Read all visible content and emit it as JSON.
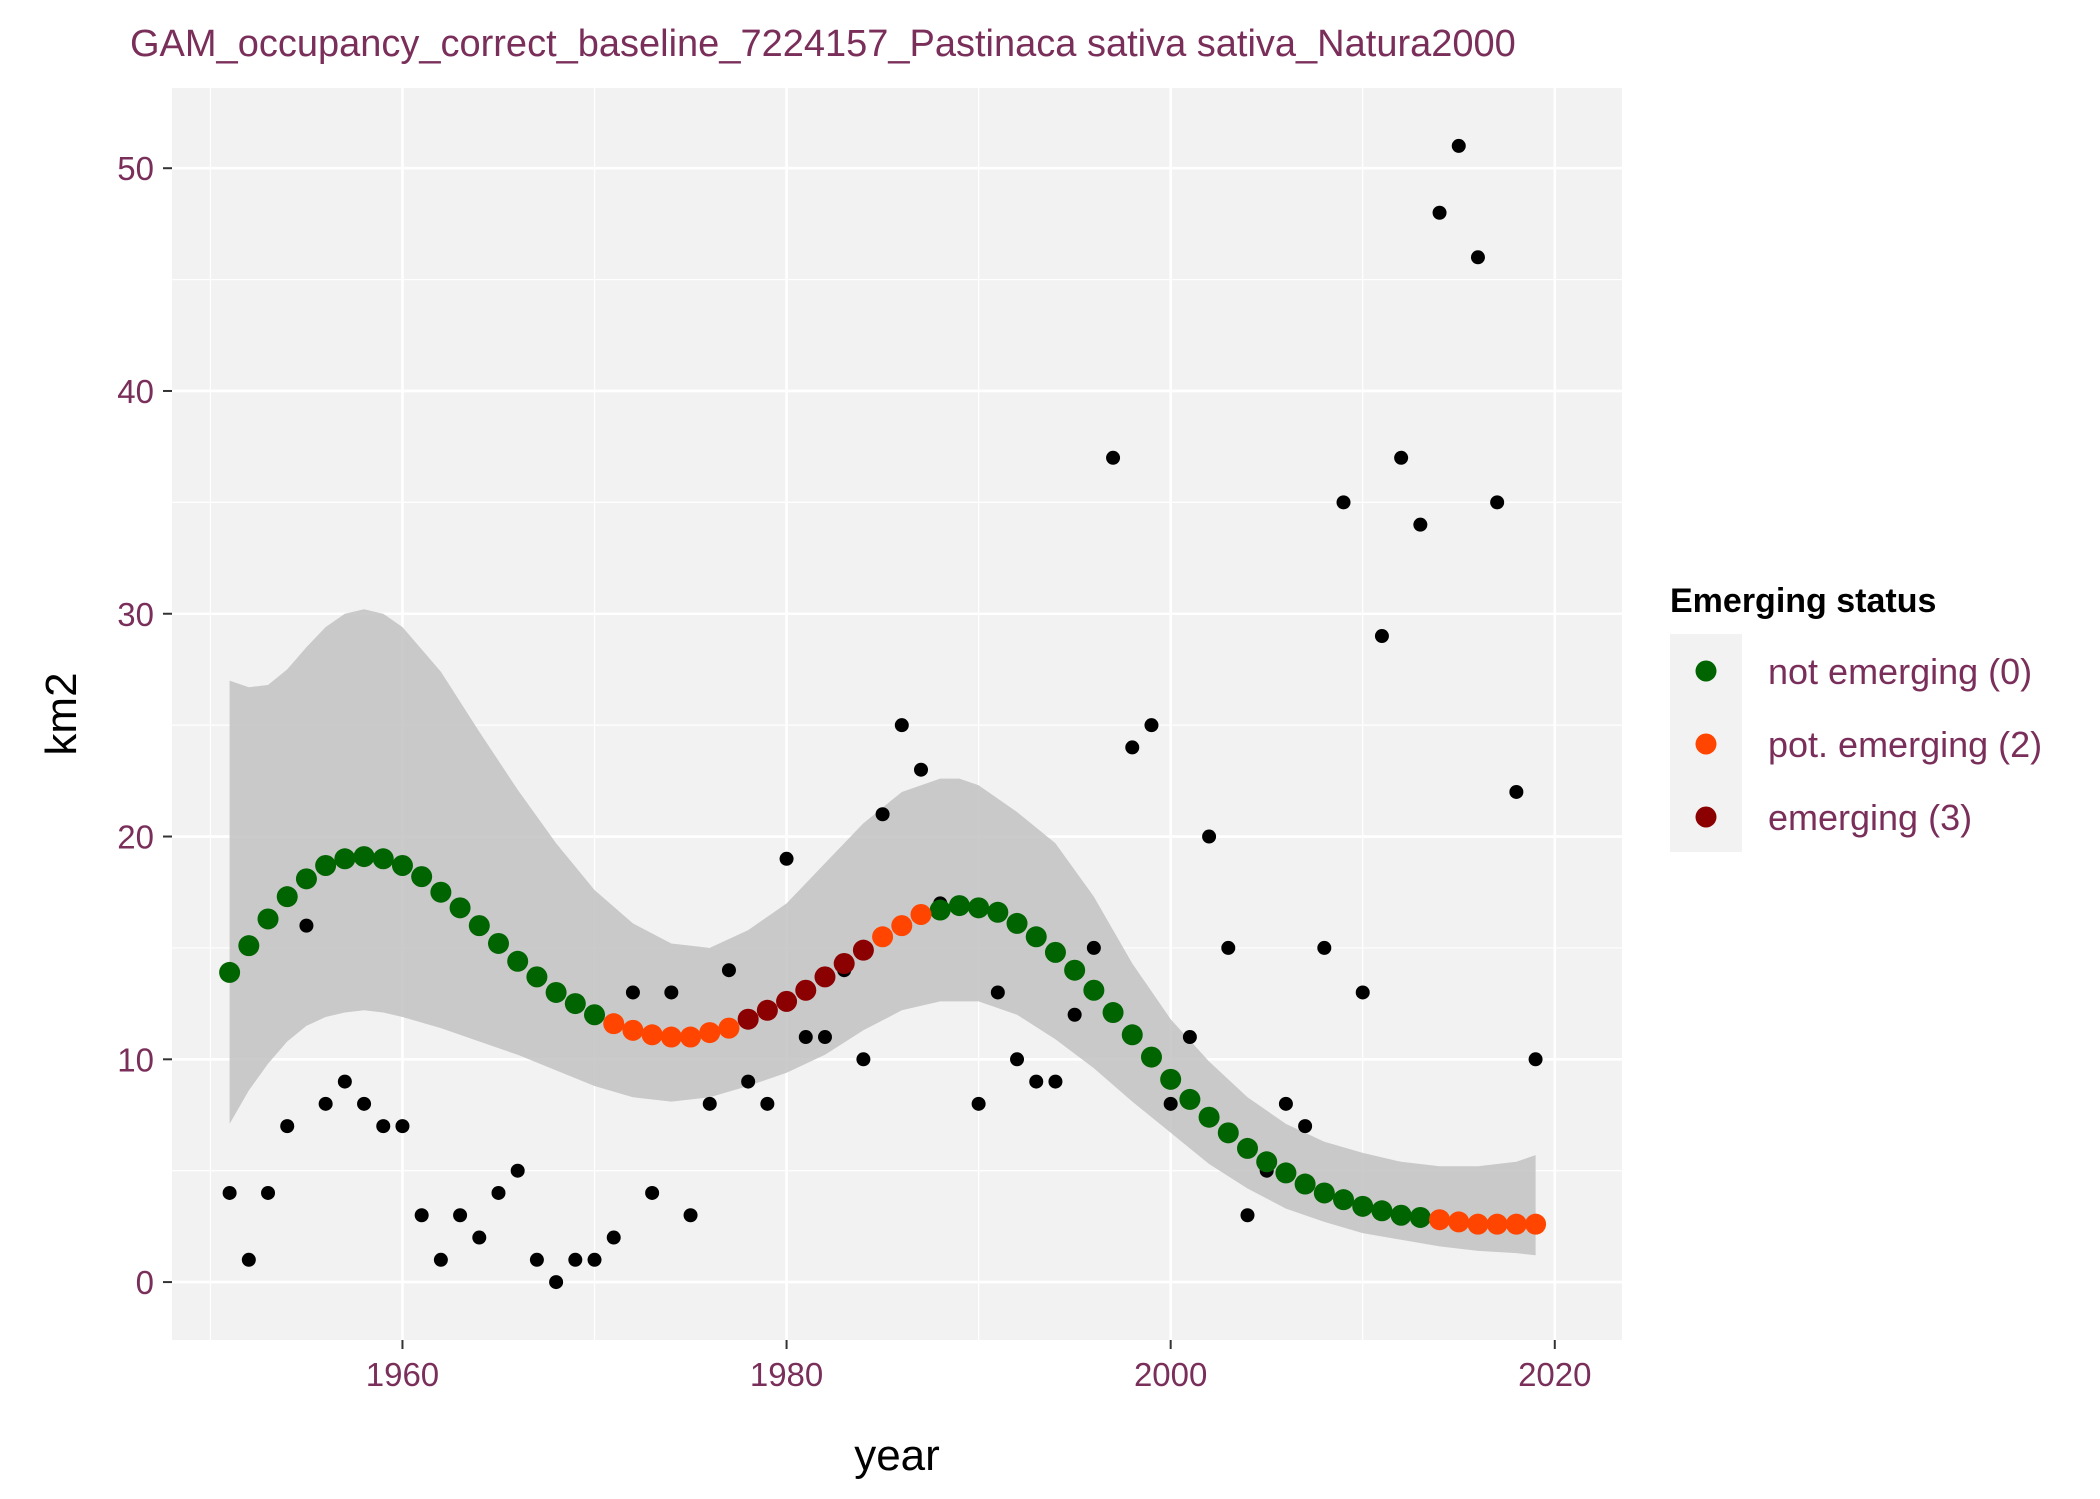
{
  "chart_data": {
    "type": "scatter",
    "title": "GAM_occupancy_correct_baseline_7224157_Pastinaca sativa sativa_Natura2000",
    "xlabel": "year",
    "ylabel": "km2",
    "xlim": [
      1948,
      2023.5
    ],
    "ylim": [
      -2.6,
      53.6
    ],
    "x_ticks": [
      1960,
      1980,
      2000,
      2020
    ],
    "y_ticks": [
      0,
      10,
      20,
      30,
      40,
      50
    ],
    "grid": true,
    "legend": {
      "title": "Emerging status",
      "position": "right",
      "entries": [
        {
          "label": "not emerging (0)",
          "color": "#006400"
        },
        {
          "label": "pot. emerging (2)",
          "color": "#ff4500"
        },
        {
          "label": "emerging (3)",
          "color": "#8b0000"
        }
      ]
    },
    "observed": {
      "color": "#000000",
      "points": [
        [
          1951,
          4
        ],
        [
          1952,
          1
        ],
        [
          1953,
          4
        ],
        [
          1954,
          7
        ],
        [
          1955,
          16
        ],
        [
          1956,
          8
        ],
        [
          1957,
          9
        ],
        [
          1958,
          8
        ],
        [
          1959,
          7
        ],
        [
          1960,
          7
        ],
        [
          1961,
          3
        ],
        [
          1962,
          1
        ],
        [
          1963,
          3
        ],
        [
          1964,
          2
        ],
        [
          1965,
          4
        ],
        [
          1966,
          5
        ],
        [
          1967,
          1
        ],
        [
          1968,
          0
        ],
        [
          1969,
          1
        ],
        [
          1970,
          1
        ],
        [
          1971,
          2
        ],
        [
          1972,
          13
        ],
        [
          1973,
          4
        ],
        [
          1974,
          13
        ],
        [
          1975,
          3
        ],
        [
          1976,
          8
        ],
        [
          1977,
          14
        ],
        [
          1978,
          9
        ],
        [
          1979,
          8
        ],
        [
          1980,
          19
        ],
        [
          1981,
          11
        ],
        [
          1982,
          11
        ],
        [
          1983,
          14
        ],
        [
          1984,
          10
        ],
        [
          1985,
          21
        ],
        [
          1986,
          25
        ],
        [
          1987,
          23
        ],
        [
          1988,
          17
        ],
        [
          1989,
          17
        ],
        [
          1990,
          8
        ],
        [
          1991,
          13
        ],
        [
          1992,
          10
        ],
        [
          1993,
          9
        ],
        [
          1994,
          9
        ],
        [
          1995,
          12
        ],
        [
          1996,
          15
        ],
        [
          1997,
          37
        ],
        [
          1998,
          24
        ],
        [
          1999,
          25
        ],
        [
          2000,
          8
        ],
        [
          2001,
          11
        ],
        [
          2002,
          20
        ],
        [
          2003,
          15
        ],
        [
          2004,
          3
        ],
        [
          2005,
          5
        ],
        [
          2006,
          8
        ],
        [
          2007,
          7
        ],
        [
          2008,
          15
        ],
        [
          2009,
          35
        ],
        [
          2010,
          13
        ],
        [
          2011,
          29
        ],
        [
          2012,
          37
        ],
        [
          2013,
          34
        ],
        [
          2014,
          48
        ],
        [
          2015,
          51
        ],
        [
          2016,
          46
        ],
        [
          2017,
          35
        ],
        [
          2018,
          22
        ],
        [
          2019,
          10
        ]
      ]
    },
    "fitted": {
      "series": [
        {
          "name": "not emerging (0)",
          "color": "#006400",
          "points": [
            [
              1951,
              13.9
            ],
            [
              1952,
              15.1
            ],
            [
              1953,
              16.3
            ],
            [
              1954,
              17.3
            ],
            [
              1955,
              18.1
            ],
            [
              1956,
              18.7
            ],
            [
              1957,
              19.0
            ],
            [
              1958,
              19.1
            ],
            [
              1959,
              19.0
            ],
            [
              1960,
              18.7
            ],
            [
              1961,
              18.2
            ],
            [
              1962,
              17.5
            ],
            [
              1963,
              16.8
            ],
            [
              1964,
              16.0
            ],
            [
              1965,
              15.2
            ],
            [
              1966,
              14.4
            ],
            [
              1967,
              13.7
            ],
            [
              1968,
              13.0
            ],
            [
              1969,
              12.5
            ],
            [
              1970,
              12.0
            ],
            [
              1988,
              16.7
            ],
            [
              1989,
              16.9
            ],
            [
              1990,
              16.8
            ],
            [
              1991,
              16.6
            ],
            [
              1992,
              16.1
            ],
            [
              1993,
              15.5
            ],
            [
              1994,
              14.8
            ],
            [
              1995,
              14.0
            ],
            [
              1996,
              13.1
            ],
            [
              1997,
              12.1
            ],
            [
              1998,
              11.1
            ],
            [
              1999,
              10.1
            ],
            [
              2000,
              9.1
            ],
            [
              2001,
              8.2
            ],
            [
              2002,
              7.4
            ],
            [
              2003,
              6.7
            ],
            [
              2004,
              6.0
            ],
            [
              2005,
              5.4
            ],
            [
              2006,
              4.9
            ],
            [
              2007,
              4.4
            ],
            [
              2008,
              4.0
            ],
            [
              2009,
              3.7
            ],
            [
              2010,
              3.4
            ],
            [
              2011,
              3.2
            ],
            [
              2012,
              3.0
            ],
            [
              2013,
              2.9
            ]
          ]
        },
        {
          "name": "pot. emerging (2)",
          "color": "#ff4500",
          "points": [
            [
              1971,
              11.6
            ],
            [
              1972,
              11.3
            ],
            [
              1973,
              11.1
            ],
            [
              1974,
              11.0
            ],
            [
              1975,
              11.0
            ],
            [
              1976,
              11.2
            ],
            [
              1977,
              11.4
            ],
            [
              1985,
              15.5
            ],
            [
              1986,
              16.0
            ],
            [
              1987,
              16.5
            ],
            [
              2014,
              2.8
            ],
            [
              2015,
              2.7
            ],
            [
              2016,
              2.6
            ],
            [
              2017,
              2.6
            ],
            [
              2018,
              2.6
            ],
            [
              2019,
              2.6
            ]
          ]
        },
        {
          "name": "emerging (3)",
          "color": "#8b0000",
          "points": [
            [
              1978,
              11.8
            ],
            [
              1979,
              12.2
            ],
            [
              1980,
              12.6
            ],
            [
              1981,
              13.1
            ],
            [
              1982,
              13.7
            ],
            [
              1983,
              14.3
            ],
            [
              1984,
              14.9
            ]
          ]
        }
      ]
    },
    "confidence_band": {
      "color": "#bebebe",
      "points": [
        [
          1951,
          7.1,
          27.0
        ],
        [
          1952,
          8.6,
          26.7
        ],
        [
          1953,
          9.8,
          26.8
        ],
        [
          1954,
          10.8,
          27.5
        ],
        [
          1955,
          11.5,
          28.5
        ],
        [
          1956,
          11.9,
          29.4
        ],
        [
          1957,
          12.1,
          30.0
        ],
        [
          1958,
          12.2,
          30.2
        ],
        [
          1959,
          12.1,
          30.0
        ],
        [
          1960,
          11.9,
          29.4
        ],
        [
          1962,
          11.4,
          27.4
        ],
        [
          1964,
          10.8,
          24.7
        ],
        [
          1966,
          10.2,
          22.1
        ],
        [
          1968,
          9.5,
          19.7
        ],
        [
          1970,
          8.8,
          17.6
        ],
        [
          1972,
          8.3,
          16.1
        ],
        [
          1974,
          8.1,
          15.2
        ],
        [
          1976,
          8.3,
          15.0
        ],
        [
          1978,
          8.8,
          15.8
        ],
        [
          1980,
          9.4,
          17.0
        ],
        [
          1982,
          10.2,
          18.8
        ],
        [
          1984,
          11.3,
          20.6
        ],
        [
          1986,
          12.2,
          22.0
        ],
        [
          1988,
          12.6,
          22.6
        ],
        [
          1989,
          12.6,
          22.6
        ],
        [
          1990,
          12.6,
          22.3
        ],
        [
          1992,
          12.0,
          21.1
        ],
        [
          1994,
          10.9,
          19.7
        ],
        [
          1996,
          9.6,
          17.3
        ],
        [
          1998,
          8.1,
          14.3
        ],
        [
          2000,
          6.7,
          11.8
        ],
        [
          2002,
          5.3,
          9.9
        ],
        [
          2004,
          4.2,
          8.3
        ],
        [
          2006,
          3.3,
          7.1
        ],
        [
          2008,
          2.7,
          6.3
        ],
        [
          2010,
          2.2,
          5.8
        ],
        [
          2012,
          1.9,
          5.4
        ],
        [
          2014,
          1.6,
          5.2
        ],
        [
          2016,
          1.4,
          5.2
        ],
        [
          2018,
          1.3,
          5.4
        ],
        [
          2019,
          1.2,
          5.7
        ]
      ]
    }
  }
}
